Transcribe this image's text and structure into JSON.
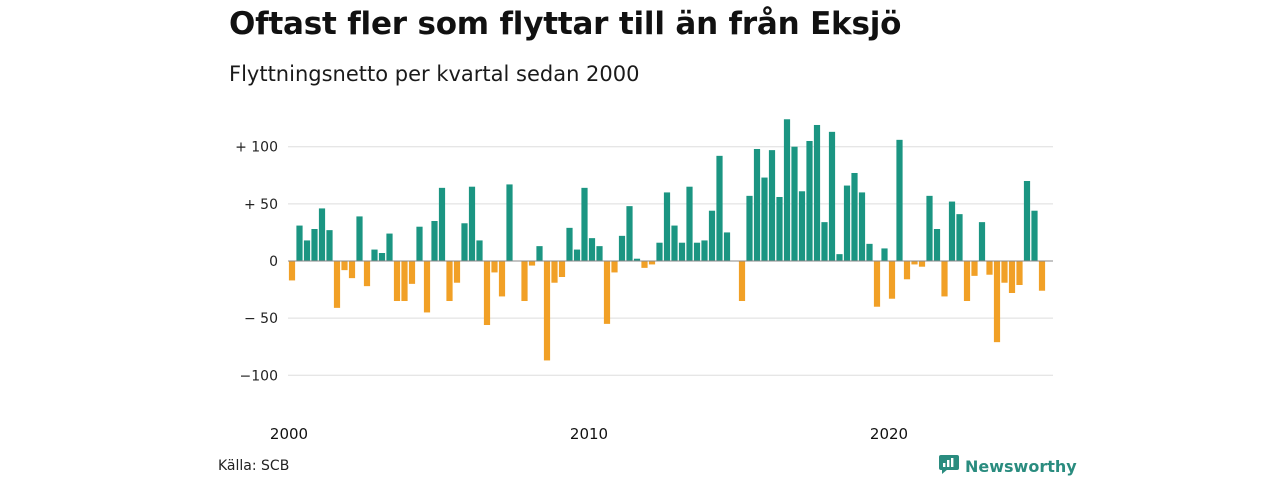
{
  "title": "Oftast fler som flyttar till än från Eksjö",
  "subtitle": "Flyttningsnetto per kvartal sedan 2000",
  "source": "Källa: SCB",
  "brand": {
    "name": "Newsworthy",
    "icon": "newsworthy-logo-icon"
  },
  "colors": {
    "positive": "#1b9582",
    "negative": "#f1a026",
    "grid": "#dddddd",
    "zero": "#888888"
  },
  "chart_data": {
    "type": "bar",
    "title": "Oftast fler som flyttar till än från Eksjö",
    "subtitle": "Flyttningsnetto per kvartal sedan 2000",
    "xlabel": "",
    "ylabel": "",
    "x_start_year": 2000,
    "periods_per_year": 4,
    "ylim": [
      -110,
      125
    ],
    "yticks": [
      100,
      50,
      0,
      -50,
      -100
    ],
    "ytick_labels": [
      "+ 100",
      "+  50",
      "0",
      "− 50",
      "−100"
    ],
    "xticks": [
      2000,
      2010,
      2020
    ],
    "xtick_labels": [
      "2000",
      "2010",
      "2020"
    ],
    "grid": true,
    "values": [
      -17,
      31,
      18,
      28,
      46,
      27,
      -41,
      -8,
      -15,
      39,
      -22,
      10,
      7,
      24,
      -35,
      -35,
      -20,
      30,
      -45,
      35,
      64,
      -35,
      -19,
      33,
      65,
      18,
      -56,
      -10,
      -31,
      67,
      0,
      -35,
      -4,
      13,
      -87,
      -19,
      -14,
      29,
      10,
      64,
      20,
      13,
      -55,
      -10,
      22,
      48,
      2,
      -6,
      -3,
      16,
      60,
      31,
      16,
      65,
      16,
      18,
      44,
      92,
      25,
      0,
      -35,
      57,
      98,
      73,
      97,
      56,
      124,
      100,
      61,
      105,
      119,
      34,
      113,
      6,
      66,
      77,
      60,
      15,
      -40,
      11,
      -33,
      106,
      -16,
      -3,
      -5,
      57,
      28,
      -31,
      52,
      41,
      -35,
      -13,
      34,
      -12,
      -71,
      -19,
      -28,
      -21,
      70,
      44,
      -26
    ]
  }
}
